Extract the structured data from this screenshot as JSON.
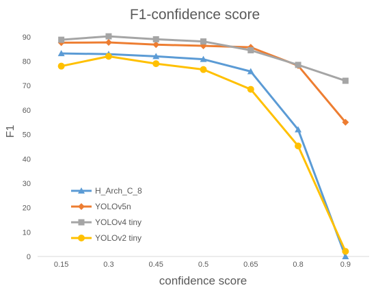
{
  "chart_data": {
    "type": "line",
    "title": "F1-confidence score",
    "xlabel": "confidence score",
    "ylabel": "F1",
    "categories": [
      "0.15",
      "0.3",
      "0.45",
      "0.5",
      "0.65",
      "0.8",
      "0.9"
    ],
    "ylim": [
      0,
      95
    ],
    "yticks": [
      0,
      10,
      20,
      30,
      40,
      50,
      60,
      70,
      80,
      90
    ],
    "grid": false,
    "legend_position": "bottom-left",
    "series": [
      {
        "name": "H_Arch_C_8",
        "color": "#5B9BD5",
        "marker": "triangle",
        "values": [
          83.2,
          82.9,
          82.0,
          80.8,
          75.8,
          52.0,
          0.0
        ]
      },
      {
        "name": "YOLOv5n",
        "color": "#ED7D31",
        "marker": "diamond",
        "values": [
          87.6,
          87.7,
          86.8,
          86.3,
          85.7,
          78.2,
          55.0
        ]
      },
      {
        "name": "YOLOv4 tiny",
        "color": "#A5A5A5",
        "marker": "square",
        "values": [
          88.8,
          90.2,
          89.0,
          88.1,
          84.5,
          78.5,
          72.0
        ]
      },
      {
        "name": "YOLOv2 tiny",
        "color": "#FFC000",
        "marker": "circle",
        "values": [
          78.0,
          82.0,
          79.0,
          76.6,
          68.5,
          45.3,
          2.1
        ]
      }
    ]
  }
}
